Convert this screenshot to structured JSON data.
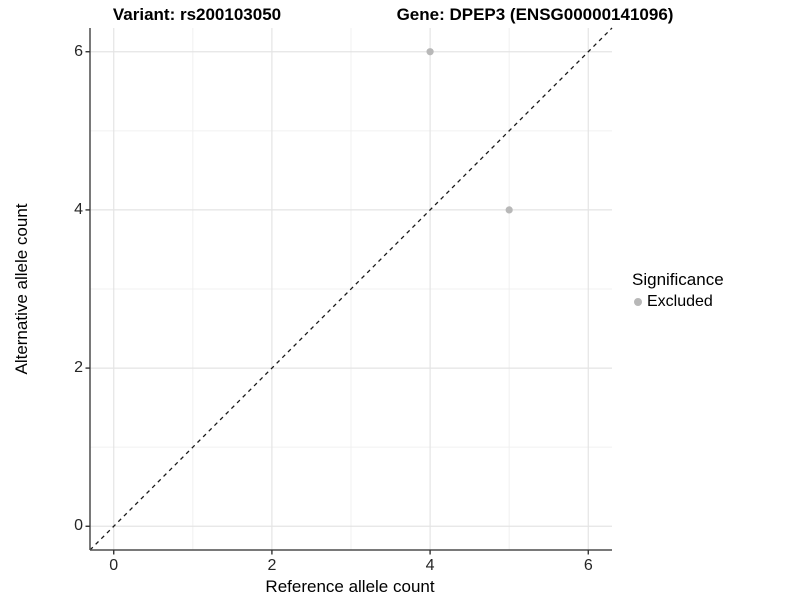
{
  "titles": {
    "variant": "Variant: rs200103050",
    "gene": "Gene: DPEP3 (ENSG00000141096)"
  },
  "axes": {
    "x_label": "Reference allele count",
    "y_label": "Alternative allele count"
  },
  "legend": {
    "title": "Significance",
    "items": [
      {
        "label": "Excluded",
        "color": "#b8b8b8"
      }
    ]
  },
  "colors": {
    "grid_major": "#e4e4e4",
    "grid_minor": "#f0f0f0",
    "axis_line": "#4d4d4d",
    "tick_mark": "#333333",
    "reference_line": "#1a1a1a",
    "point": "#b8b8b8"
  },
  "chart_data": {
    "type": "scatter",
    "title": "Variant: rs200103050   Gene: DPEP3 (ENSG00000141096)",
    "xlabel": "Reference allele count",
    "ylabel": "Alternative allele count",
    "xlim": [
      -0.3,
      6.3
    ],
    "ylim": [
      -0.3,
      6.3
    ],
    "x_ticks": [
      0,
      2,
      4,
      6
    ],
    "y_ticks": [
      0,
      2,
      4,
      6
    ],
    "x_minor_ticks": [
      1,
      3,
      5
    ],
    "y_minor_ticks": [
      1,
      3,
      5
    ],
    "grid": true,
    "legend_position": "right",
    "series": [
      {
        "name": "Excluded",
        "color": "#b8b8b8",
        "points": [
          {
            "x": 4,
            "y": 6
          },
          {
            "x": 5,
            "y": 4
          }
        ]
      }
    ],
    "reference_line": {
      "type": "identity y=x",
      "style": "dashed",
      "color": "#1a1a1a"
    }
  }
}
